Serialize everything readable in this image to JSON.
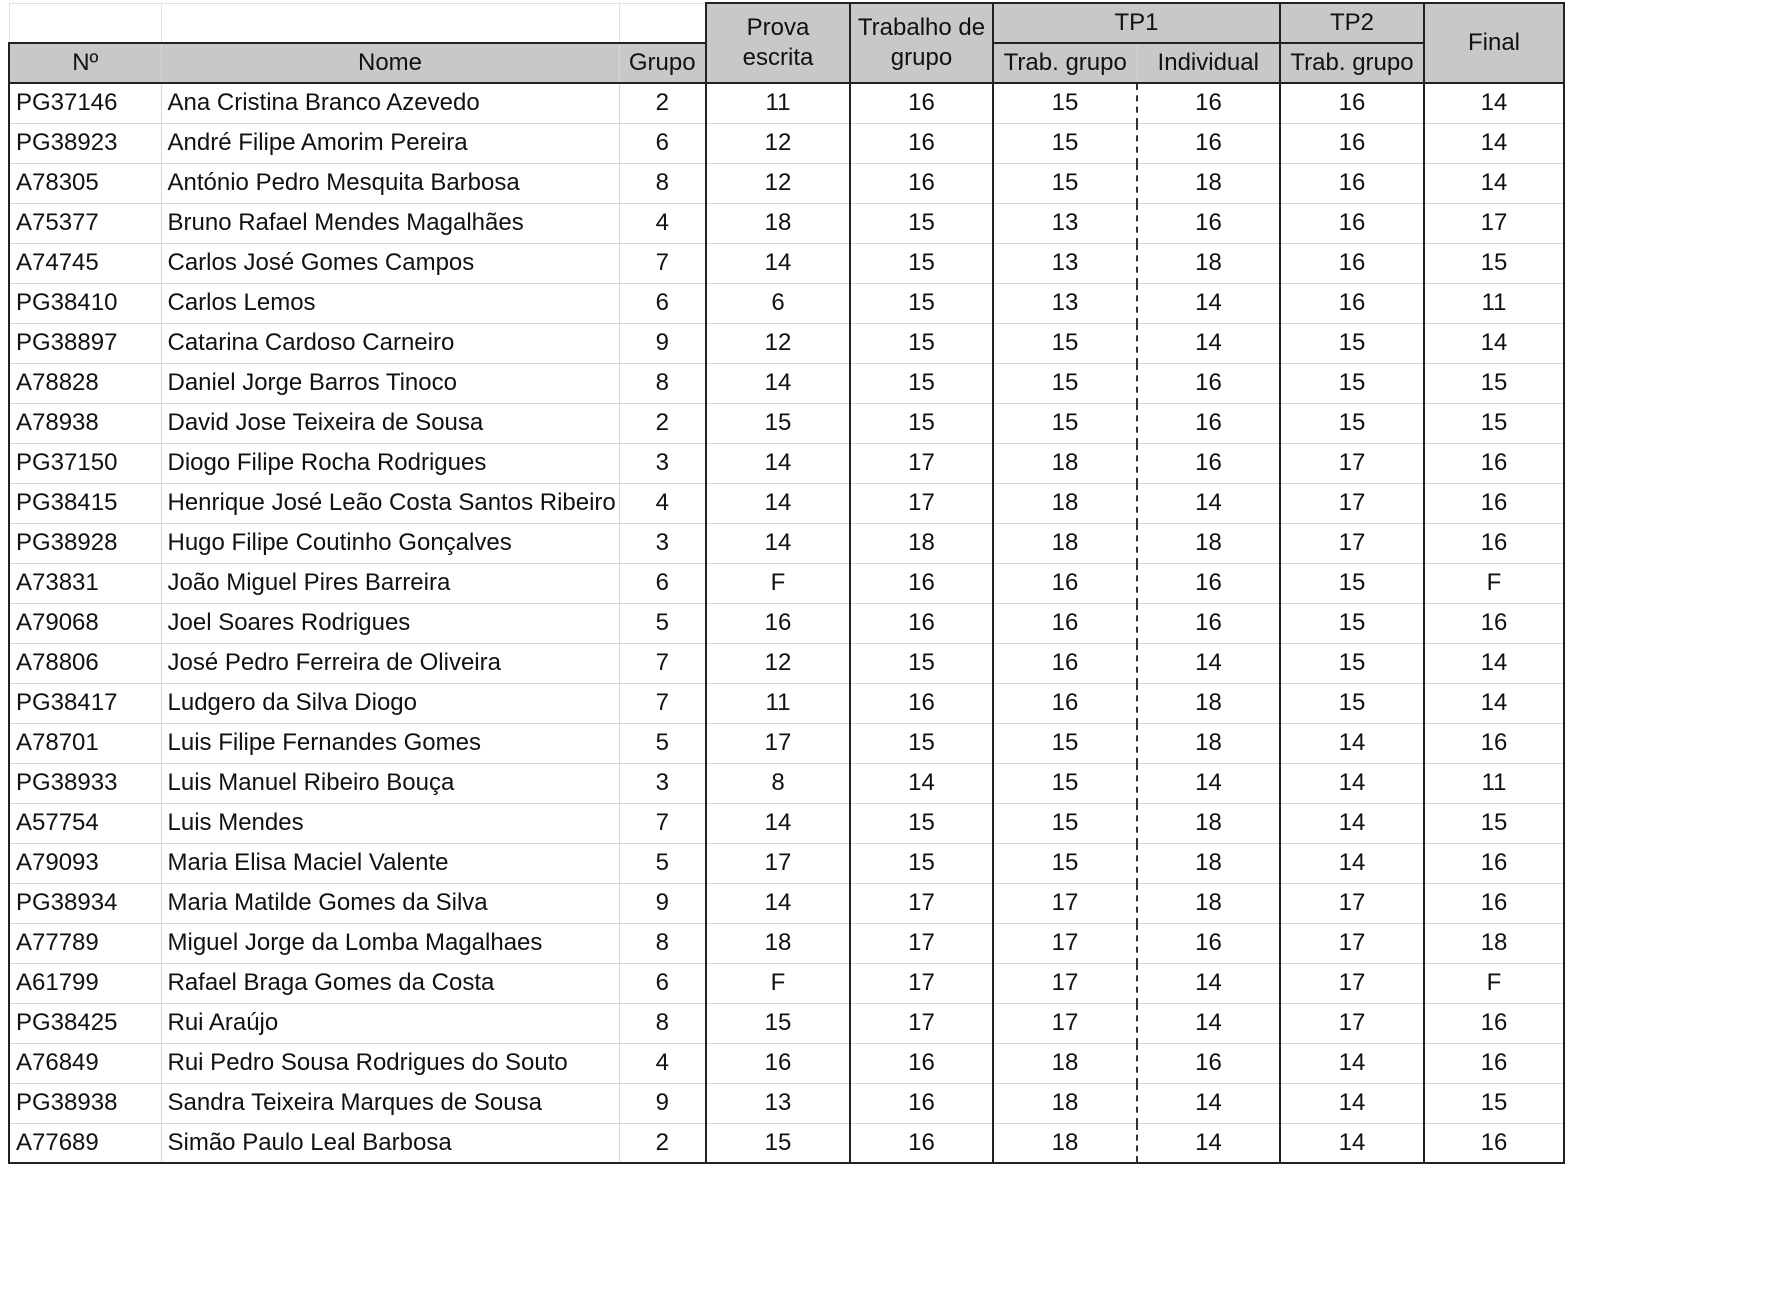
{
  "headers": {
    "numero": "Nº",
    "nome": "Nome",
    "grupo": "Grupo",
    "prova_escrita": [
      "Prova",
      "escrita"
    ],
    "trabalho_grupo": [
      "Trabalho de",
      "grupo"
    ],
    "tp1": "TP1",
    "tp1_trab_grupo": "Trab. grupo",
    "tp1_individual": "Individual",
    "tp2": "TP2",
    "tp2_trab_grupo": "Trab. grupo",
    "final": "Final"
  },
  "rows": [
    [
      "PG37146",
      "Ana Cristina Branco Azevedo",
      "2",
      "11",
      "16",
      "15",
      "16",
      "16",
      "14"
    ],
    [
      "PG38923",
      "André Filipe Amorim Pereira",
      "6",
      "12",
      "16",
      "15",
      "16",
      "16",
      "14"
    ],
    [
      "A78305",
      "António Pedro Mesquita Barbosa",
      "8",
      "12",
      "16",
      "15",
      "18",
      "16",
      "14"
    ],
    [
      "A75377",
      "Bruno Rafael Mendes Magalhães",
      "4",
      "18",
      "15",
      "13",
      "16",
      "16",
      "17"
    ],
    [
      "A74745",
      "Carlos José Gomes Campos",
      "7",
      "14",
      "15",
      "13",
      "18",
      "16",
      "15"
    ],
    [
      "PG38410",
      "Carlos Lemos",
      "6",
      "6",
      "15",
      "13",
      "14",
      "16",
      "11"
    ],
    [
      "PG38897",
      "Catarina Cardoso Carneiro",
      "9",
      "12",
      "15",
      "15",
      "14",
      "15",
      "14"
    ],
    [
      "A78828",
      "Daniel Jorge Barros Tinoco",
      "8",
      "14",
      "15",
      "15",
      "16",
      "15",
      "15"
    ],
    [
      "A78938",
      "David Jose Teixeira de Sousa",
      "2",
      "15",
      "15",
      "15",
      "16",
      "15",
      "15"
    ],
    [
      "PG37150",
      "Diogo Filipe Rocha Rodrigues",
      "3",
      "14",
      "17",
      "18",
      "16",
      "17",
      "16"
    ],
    [
      "PG38415",
      "Henrique José Leão Costa Santos Ribeiro",
      "4",
      "14",
      "17",
      "18",
      "14",
      "17",
      "16"
    ],
    [
      "PG38928",
      "Hugo Filipe Coutinho Gonçalves",
      "3",
      "14",
      "18",
      "18",
      "18",
      "17",
      "16"
    ],
    [
      "A73831",
      "João Miguel Pires Barreira",
      "6",
      "F",
      "16",
      "16",
      "16",
      "15",
      "F"
    ],
    [
      "A79068",
      "Joel Soares Rodrigues",
      "5",
      "16",
      "16",
      "16",
      "16",
      "15",
      "16"
    ],
    [
      "A78806",
      "José Pedro Ferreira de Oliveira",
      "7",
      "12",
      "15",
      "16",
      "14",
      "15",
      "14"
    ],
    [
      "PG38417",
      "Ludgero da Silva Diogo",
      "7",
      "11",
      "16",
      "16",
      "18",
      "15",
      "14"
    ],
    [
      "A78701",
      "Luis Filipe Fernandes Gomes",
      "5",
      "17",
      "15",
      "15",
      "18",
      "14",
      "16"
    ],
    [
      "PG38933",
      "Luis Manuel Ribeiro Bouça",
      "3",
      "8",
      "14",
      "15",
      "14",
      "14",
      "11"
    ],
    [
      "A57754",
      "Luis Mendes",
      "7",
      "14",
      "15",
      "15",
      "18",
      "14",
      "15"
    ],
    [
      "A79093",
      "Maria Elisa Maciel Valente",
      "5",
      "17",
      "15",
      "15",
      "18",
      "14",
      "16"
    ],
    [
      "PG38934",
      "Maria Matilde Gomes da Silva",
      "9",
      "14",
      "17",
      "17",
      "18",
      "17",
      "16"
    ],
    [
      "A77789",
      "Miguel Jorge da Lomba Magalhaes",
      "8",
      "18",
      "17",
      "17",
      "16",
      "17",
      "18"
    ],
    [
      "A61799",
      "Rafael Braga Gomes da Costa",
      "6",
      "F",
      "17",
      "17",
      "14",
      "17",
      "F"
    ],
    [
      "PG38425",
      "Rui Araújo",
      "8",
      "15",
      "17",
      "17",
      "14",
      "17",
      "16"
    ],
    [
      "A76849",
      "Rui Pedro Sousa Rodrigues do Souto",
      "4",
      "16",
      "16",
      "18",
      "16",
      "14",
      "16"
    ],
    [
      "PG38938",
      "Sandra Teixeira Marques de Sousa",
      "9",
      "13",
      "16",
      "18",
      "14",
      "14",
      "15"
    ],
    [
      "A77689",
      "Simão Paulo Leal Barbosa",
      "2",
      "15",
      "16",
      "18",
      "14",
      "14",
      "16"
    ]
  ]
}
